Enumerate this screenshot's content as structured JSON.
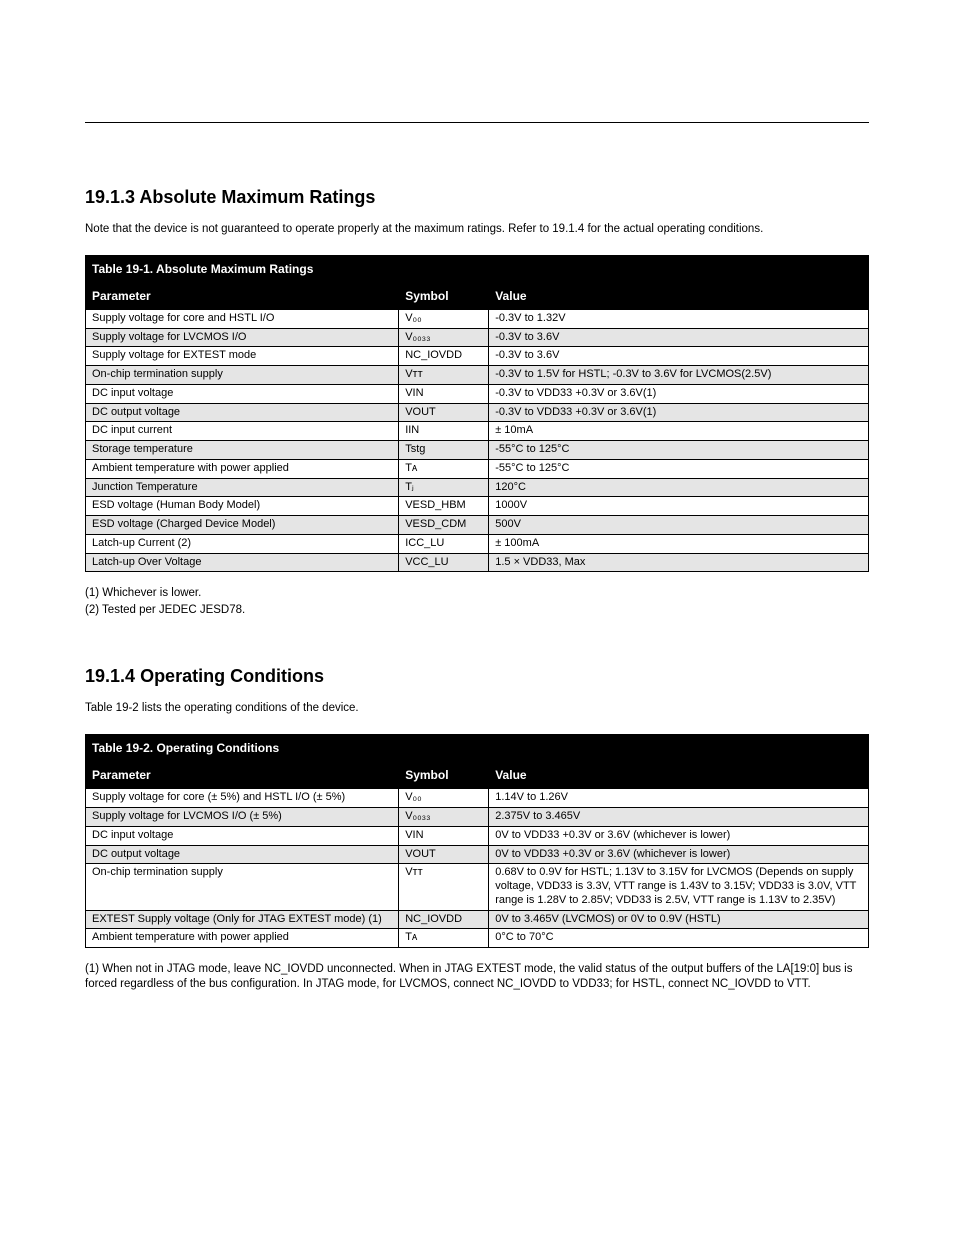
{
  "page": {
    "header_line_color": "#000000",
    "background_color": "#ffffff"
  },
  "section1": {
    "number": "19.1.3",
    "title": "Absolute Maximum Ratings",
    "desc": "Note that the device is not guaranteed to operate properly at the maximum ratings. Refer to 19.1.4 for the actual operating conditions.",
    "table_label": "Table 19-1. Absolute Maximum Ratings",
    "table": {
      "columns": [
        "Parameter",
        "Symbol",
        "Value"
      ],
      "col_widths_pct": [
        40,
        11.5,
        48.5
      ],
      "header_bg": "#000000",
      "header_fg": "#ffffff",
      "row_alt_bg": "#e5e5e5",
      "border_color": "#000000",
      "font_size_pt": 11,
      "rows": [
        [
          "Supply voltage for core and HSTL I/O",
          "V₀₀",
          "-0.3V to 1.32V"
        ],
        [
          "Supply voltage for LVCMOS I/O",
          "V₀₀₃₃",
          "-0.3V to 3.6V"
        ],
        [
          "Supply voltage for EXTEST mode",
          "NC_IOVDD",
          "-0.3V to 3.6V"
        ],
        [
          "On-chip termination supply",
          "Vᴛᴛ",
          "-0.3V to 1.5V for HSTL; -0.3V to 3.6V for LVCMOS(2.5V)"
        ],
        [
          "DC input voltage",
          "VIN",
          "-0.3V to VDD33 +0.3V or 3.6V(1)"
        ],
        [
          "DC output voltage",
          "VOUT",
          "-0.3V to VDD33 +0.3V or 3.6V(1)"
        ],
        [
          "DC input current",
          "IIN",
          "± 10mA"
        ],
        [
          "Storage temperature",
          "Tstg",
          "-55°C to 125°C"
        ],
        [
          "Ambient temperature with power applied",
          "Tᴀ",
          "-55°C to 125°C"
        ],
        [
          "Junction Temperature",
          "Tⱼ",
          "120°C"
        ],
        [
          "ESD voltage (Human Body Model)",
          "VESD_HBM",
          "1000V"
        ],
        [
          "ESD voltage (Charged Device Model)",
          "VESD_CDM",
          "500V"
        ],
        [
          "Latch-up Current (2)",
          "ICC_LU",
          "± 100mA"
        ],
        [
          "Latch-up Over Voltage",
          "VCC_LU",
          "1.5 × VDD33, Max"
        ]
      ]
    },
    "notes": [
      "(1) Whichever is lower.",
      "(2) Tested per JEDEC JESD78."
    ]
  },
  "section2": {
    "number": "19.1.4",
    "title": "Operating Conditions",
    "desc": "Table 19-2 lists the operating conditions of the device.",
    "table_label": "Table 19-2. Operating Conditions",
    "table": {
      "columns": [
        "Parameter",
        "Symbol",
        "Value"
      ],
      "col_widths_pct": [
        40,
        11.5,
        48.5
      ],
      "header_bg": "#000000",
      "header_fg": "#ffffff",
      "row_alt_bg": "#e5e5e5",
      "border_color": "#000000",
      "font_size_pt": 11,
      "rows": [
        [
          "Supply voltage for core (± 5%) and HSTL I/O (± 5%)",
          "V₀₀",
          "1.14V to 1.26V"
        ],
        [
          "Supply voltage for LVCMOS I/O (± 5%)",
          "V₀₀₃₃",
          "2.375V to 3.465V"
        ],
        [
          "DC input voltage",
          "VIN",
          "0V to VDD33 +0.3V or 3.6V (whichever is lower)"
        ],
        [
          "DC output voltage",
          "VOUT",
          "0V to VDD33 +0.3V or 3.6V (whichever is lower)"
        ],
        [
          "On-chip termination supply",
          "Vᴛᴛ",
          "0.68V to 0.9V for HSTL; 1.13V to 3.15V for LVCMOS (Depends on supply voltage, VDD33 is 3.3V, VTT range is 1.43V to 3.15V; VDD33 is 3.0V, VTT range is 1.28V to 2.85V; VDD33 is 2.5V, VTT range is 1.13V to 2.35V)"
        ],
        [
          "EXTEST Supply voltage (Only for JTAG EXTEST mode) (1)",
          "NC_IOVDD",
          "0V to 3.465V (LVCMOS) or 0V to 0.9V (HSTL)"
        ],
        [
          "Ambient temperature with power applied",
          "Tᴀ",
          "0°C to 70°C"
        ]
      ]
    },
    "notes": [
      "(1) When not in JTAG mode, leave NC_IOVDD unconnected. When in JTAG EXTEST mode, the valid status of the output buffers of the LA[19:0] bus is forced regardless of the bus configuration. In JTAG mode, for LVCMOS, connect NC_IOVDD to VDD33; for HSTL, connect NC_IOVDD to VTT."
    ]
  }
}
